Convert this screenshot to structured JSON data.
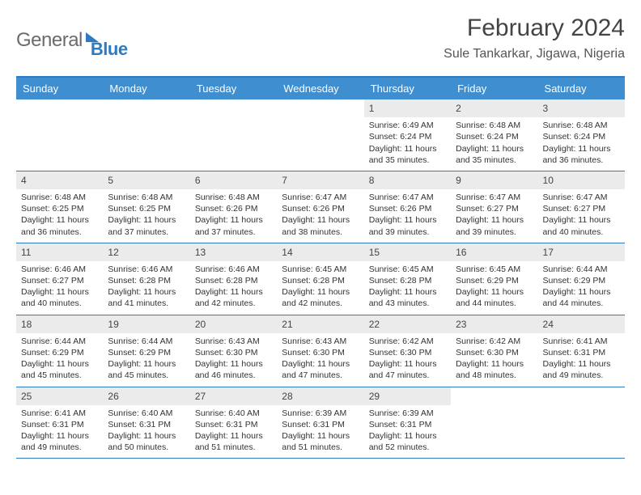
{
  "logo": {
    "text1": "General",
    "text2": "Blue"
  },
  "title": "February 2024",
  "location": "Sule Tankarkar, Jigawa, Nigeria",
  "colors": {
    "header_bg": "#3f8ecf",
    "accent_border": "#2d7bc0",
    "daynum_bg": "#ebebeb",
    "text": "#333333",
    "title_text": "#444444",
    "logo_gray": "#6b6b6b",
    "logo_blue": "#2d7bc0",
    "white": "#ffffff"
  },
  "day_headers": [
    "Sunday",
    "Monday",
    "Tuesday",
    "Wednesday",
    "Thursday",
    "Friday",
    "Saturday"
  ],
  "weeks": [
    [
      {
        "n": "",
        "sr": "",
        "ss": "",
        "dl1": "",
        "dl2": ""
      },
      {
        "n": "",
        "sr": "",
        "ss": "",
        "dl1": "",
        "dl2": ""
      },
      {
        "n": "",
        "sr": "",
        "ss": "",
        "dl1": "",
        "dl2": ""
      },
      {
        "n": "",
        "sr": "",
        "ss": "",
        "dl1": "",
        "dl2": ""
      },
      {
        "n": "1",
        "sr": "Sunrise: 6:49 AM",
        "ss": "Sunset: 6:24 PM",
        "dl1": "Daylight: 11 hours",
        "dl2": "and 35 minutes."
      },
      {
        "n": "2",
        "sr": "Sunrise: 6:48 AM",
        "ss": "Sunset: 6:24 PM",
        "dl1": "Daylight: 11 hours",
        "dl2": "and 35 minutes."
      },
      {
        "n": "3",
        "sr": "Sunrise: 6:48 AM",
        "ss": "Sunset: 6:24 PM",
        "dl1": "Daylight: 11 hours",
        "dl2": "and 36 minutes."
      }
    ],
    [
      {
        "n": "4",
        "sr": "Sunrise: 6:48 AM",
        "ss": "Sunset: 6:25 PM",
        "dl1": "Daylight: 11 hours",
        "dl2": "and 36 minutes."
      },
      {
        "n": "5",
        "sr": "Sunrise: 6:48 AM",
        "ss": "Sunset: 6:25 PM",
        "dl1": "Daylight: 11 hours",
        "dl2": "and 37 minutes."
      },
      {
        "n": "6",
        "sr": "Sunrise: 6:48 AM",
        "ss": "Sunset: 6:26 PM",
        "dl1": "Daylight: 11 hours",
        "dl2": "and 37 minutes."
      },
      {
        "n": "7",
        "sr": "Sunrise: 6:47 AM",
        "ss": "Sunset: 6:26 PM",
        "dl1": "Daylight: 11 hours",
        "dl2": "and 38 minutes."
      },
      {
        "n": "8",
        "sr": "Sunrise: 6:47 AM",
        "ss": "Sunset: 6:26 PM",
        "dl1": "Daylight: 11 hours",
        "dl2": "and 39 minutes."
      },
      {
        "n": "9",
        "sr": "Sunrise: 6:47 AM",
        "ss": "Sunset: 6:27 PM",
        "dl1": "Daylight: 11 hours",
        "dl2": "and 39 minutes."
      },
      {
        "n": "10",
        "sr": "Sunrise: 6:47 AM",
        "ss": "Sunset: 6:27 PM",
        "dl1": "Daylight: 11 hours",
        "dl2": "and 40 minutes."
      }
    ],
    [
      {
        "n": "11",
        "sr": "Sunrise: 6:46 AM",
        "ss": "Sunset: 6:27 PM",
        "dl1": "Daylight: 11 hours",
        "dl2": "and 40 minutes."
      },
      {
        "n": "12",
        "sr": "Sunrise: 6:46 AM",
        "ss": "Sunset: 6:28 PM",
        "dl1": "Daylight: 11 hours",
        "dl2": "and 41 minutes."
      },
      {
        "n": "13",
        "sr": "Sunrise: 6:46 AM",
        "ss": "Sunset: 6:28 PM",
        "dl1": "Daylight: 11 hours",
        "dl2": "and 42 minutes."
      },
      {
        "n": "14",
        "sr": "Sunrise: 6:45 AM",
        "ss": "Sunset: 6:28 PM",
        "dl1": "Daylight: 11 hours",
        "dl2": "and 42 minutes."
      },
      {
        "n": "15",
        "sr": "Sunrise: 6:45 AM",
        "ss": "Sunset: 6:28 PM",
        "dl1": "Daylight: 11 hours",
        "dl2": "and 43 minutes."
      },
      {
        "n": "16",
        "sr": "Sunrise: 6:45 AM",
        "ss": "Sunset: 6:29 PM",
        "dl1": "Daylight: 11 hours",
        "dl2": "and 44 minutes."
      },
      {
        "n": "17",
        "sr": "Sunrise: 6:44 AM",
        "ss": "Sunset: 6:29 PM",
        "dl1": "Daylight: 11 hours",
        "dl2": "and 44 minutes."
      }
    ],
    [
      {
        "n": "18",
        "sr": "Sunrise: 6:44 AM",
        "ss": "Sunset: 6:29 PM",
        "dl1": "Daylight: 11 hours",
        "dl2": "and 45 minutes."
      },
      {
        "n": "19",
        "sr": "Sunrise: 6:44 AM",
        "ss": "Sunset: 6:29 PM",
        "dl1": "Daylight: 11 hours",
        "dl2": "and 45 minutes."
      },
      {
        "n": "20",
        "sr": "Sunrise: 6:43 AM",
        "ss": "Sunset: 6:30 PM",
        "dl1": "Daylight: 11 hours",
        "dl2": "and 46 minutes."
      },
      {
        "n": "21",
        "sr": "Sunrise: 6:43 AM",
        "ss": "Sunset: 6:30 PM",
        "dl1": "Daylight: 11 hours",
        "dl2": "and 47 minutes."
      },
      {
        "n": "22",
        "sr": "Sunrise: 6:42 AM",
        "ss": "Sunset: 6:30 PM",
        "dl1": "Daylight: 11 hours",
        "dl2": "and 47 minutes."
      },
      {
        "n": "23",
        "sr": "Sunrise: 6:42 AM",
        "ss": "Sunset: 6:30 PM",
        "dl1": "Daylight: 11 hours",
        "dl2": "and 48 minutes."
      },
      {
        "n": "24",
        "sr": "Sunrise: 6:41 AM",
        "ss": "Sunset: 6:31 PM",
        "dl1": "Daylight: 11 hours",
        "dl2": "and 49 minutes."
      }
    ],
    [
      {
        "n": "25",
        "sr": "Sunrise: 6:41 AM",
        "ss": "Sunset: 6:31 PM",
        "dl1": "Daylight: 11 hours",
        "dl2": "and 49 minutes."
      },
      {
        "n": "26",
        "sr": "Sunrise: 6:40 AM",
        "ss": "Sunset: 6:31 PM",
        "dl1": "Daylight: 11 hours",
        "dl2": "and 50 minutes."
      },
      {
        "n": "27",
        "sr": "Sunrise: 6:40 AM",
        "ss": "Sunset: 6:31 PM",
        "dl1": "Daylight: 11 hours",
        "dl2": "and 51 minutes."
      },
      {
        "n": "28",
        "sr": "Sunrise: 6:39 AM",
        "ss": "Sunset: 6:31 PM",
        "dl1": "Daylight: 11 hours",
        "dl2": "and 51 minutes."
      },
      {
        "n": "29",
        "sr": "Sunrise: 6:39 AM",
        "ss": "Sunset: 6:31 PM",
        "dl1": "Daylight: 11 hours",
        "dl2": "and 52 minutes."
      },
      {
        "n": "",
        "sr": "",
        "ss": "",
        "dl1": "",
        "dl2": ""
      },
      {
        "n": "",
        "sr": "",
        "ss": "",
        "dl1": "",
        "dl2": ""
      }
    ]
  ]
}
